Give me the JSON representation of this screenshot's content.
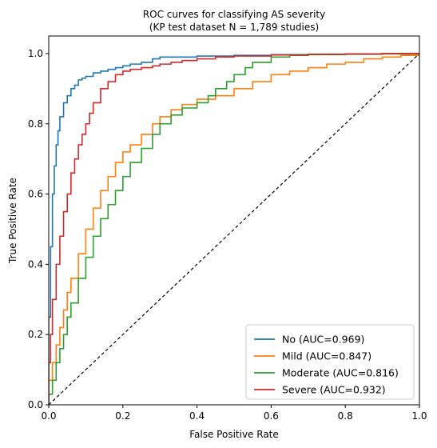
{
  "chart_data": {
    "type": "line",
    "title": [
      "ROC curves for classifying AS severity",
      "(KP test dataset N = 1,789 studies)"
    ],
    "xlabel": "False Positive Rate",
    "ylabel": "True Positive Rate",
    "xlim": [
      0,
      1
    ],
    "ylim": [
      0,
      1.05
    ],
    "xticks": [
      "0.0",
      "0.2",
      "0.4",
      "0.6",
      "0.8",
      "1.0"
    ],
    "yticks": [
      "0.0",
      "0.2",
      "0.4",
      "0.6",
      "0.8",
      "1.0"
    ],
    "grid": false,
    "legend": "lower-right",
    "diagonal": {
      "x": [
        0,
        1
      ],
      "y": [
        0,
        1
      ],
      "style": "dashed",
      "color": "#000000"
    },
    "series": [
      {
        "name": "No (AUC=0.969)",
        "color": "#1f77b4",
        "x": [
          0,
          0,
          0.005,
          0.01,
          0.015,
          0.02,
          0.025,
          0.03,
          0.04,
          0.05,
          0.06,
          0.07,
          0.08,
          0.09,
          0.1,
          0.12,
          0.14,
          0.16,
          0.18,
          0.2,
          0.22,
          0.25,
          0.28,
          0.3,
          0.4,
          0.5,
          0.6,
          0.7,
          0.8,
          0.9,
          1.0
        ],
        "y": [
          0,
          0.25,
          0.45,
          0.6,
          0.68,
          0.74,
          0.78,
          0.82,
          0.86,
          0.88,
          0.9,
          0.91,
          0.925,
          0.93,
          0.935,
          0.945,
          0.95,
          0.955,
          0.96,
          0.965,
          0.97,
          0.975,
          0.985,
          0.99,
          0.993,
          0.995,
          0.997,
          0.998,
          0.999,
          1.0,
          1.0
        ]
      },
      {
        "name": "Mild (AUC=0.847)",
        "color": "#ff7f0e",
        "x": [
          0,
          0,
          0.01,
          0.02,
          0.03,
          0.04,
          0.05,
          0.06,
          0.08,
          0.1,
          0.12,
          0.14,
          0.16,
          0.18,
          0.2,
          0.22,
          0.25,
          0.28,
          0.3,
          0.33,
          0.36,
          0.4,
          0.45,
          0.5,
          0.55,
          0.6,
          0.65,
          0.7,
          0.75,
          0.8,
          0.85,
          0.9,
          0.95,
          1.0
        ],
        "y": [
          0,
          0.07,
          0.12,
          0.17,
          0.22,
          0.27,
          0.32,
          0.36,
          0.43,
          0.5,
          0.56,
          0.61,
          0.65,
          0.69,
          0.72,
          0.74,
          0.77,
          0.8,
          0.82,
          0.84,
          0.855,
          0.87,
          0.88,
          0.9,
          0.92,
          0.94,
          0.95,
          0.96,
          0.97,
          0.975,
          0.985,
          0.99,
          0.995,
          1.0
        ]
      },
      {
        "name": "Moderate (AUC=0.816)",
        "color": "#2ca02c",
        "x": [
          0,
          0,
          0.01,
          0.02,
          0.03,
          0.04,
          0.05,
          0.06,
          0.08,
          0.1,
          0.12,
          0.14,
          0.16,
          0.18,
          0.2,
          0.22,
          0.25,
          0.28,
          0.3,
          0.33,
          0.36,
          0.4,
          0.43,
          0.45,
          0.48,
          0.5,
          0.53,
          0.55,
          0.6,
          0.65,
          0.7,
          0.8,
          0.9,
          1.0
        ],
        "y": [
          0,
          0.03,
          0.07,
          0.12,
          0.16,
          0.2,
          0.25,
          0.29,
          0.36,
          0.42,
          0.48,
          0.53,
          0.57,
          0.61,
          0.65,
          0.69,
          0.73,
          0.77,
          0.8,
          0.825,
          0.845,
          0.86,
          0.88,
          0.9,
          0.92,
          0.94,
          0.96,
          0.975,
          0.99,
          0.995,
          0.997,
          0.998,
          0.999,
          1.0
        ]
      },
      {
        "name": "Severe (AUC=0.932)",
        "color": "#d62728",
        "x": [
          0,
          0,
          0.005,
          0.01,
          0.02,
          0.03,
          0.04,
          0.05,
          0.06,
          0.07,
          0.08,
          0.09,
          0.1,
          0.11,
          0.12,
          0.14,
          0.16,
          0.18,
          0.2,
          0.22,
          0.25,
          0.28,
          0.3,
          0.33,
          0.36,
          0.4,
          0.45,
          0.5,
          0.6,
          0.7,
          0.8,
          0.9,
          1.0
        ],
        "y": [
          0,
          0.12,
          0.2,
          0.3,
          0.4,
          0.48,
          0.55,
          0.6,
          0.66,
          0.7,
          0.74,
          0.77,
          0.8,
          0.83,
          0.86,
          0.9,
          0.92,
          0.94,
          0.95,
          0.955,
          0.96,
          0.965,
          0.97,
          0.975,
          0.98,
          0.985,
          0.99,
          0.993,
          0.996,
          0.998,
          0.999,
          1.0,
          1.0
        ]
      }
    ]
  }
}
